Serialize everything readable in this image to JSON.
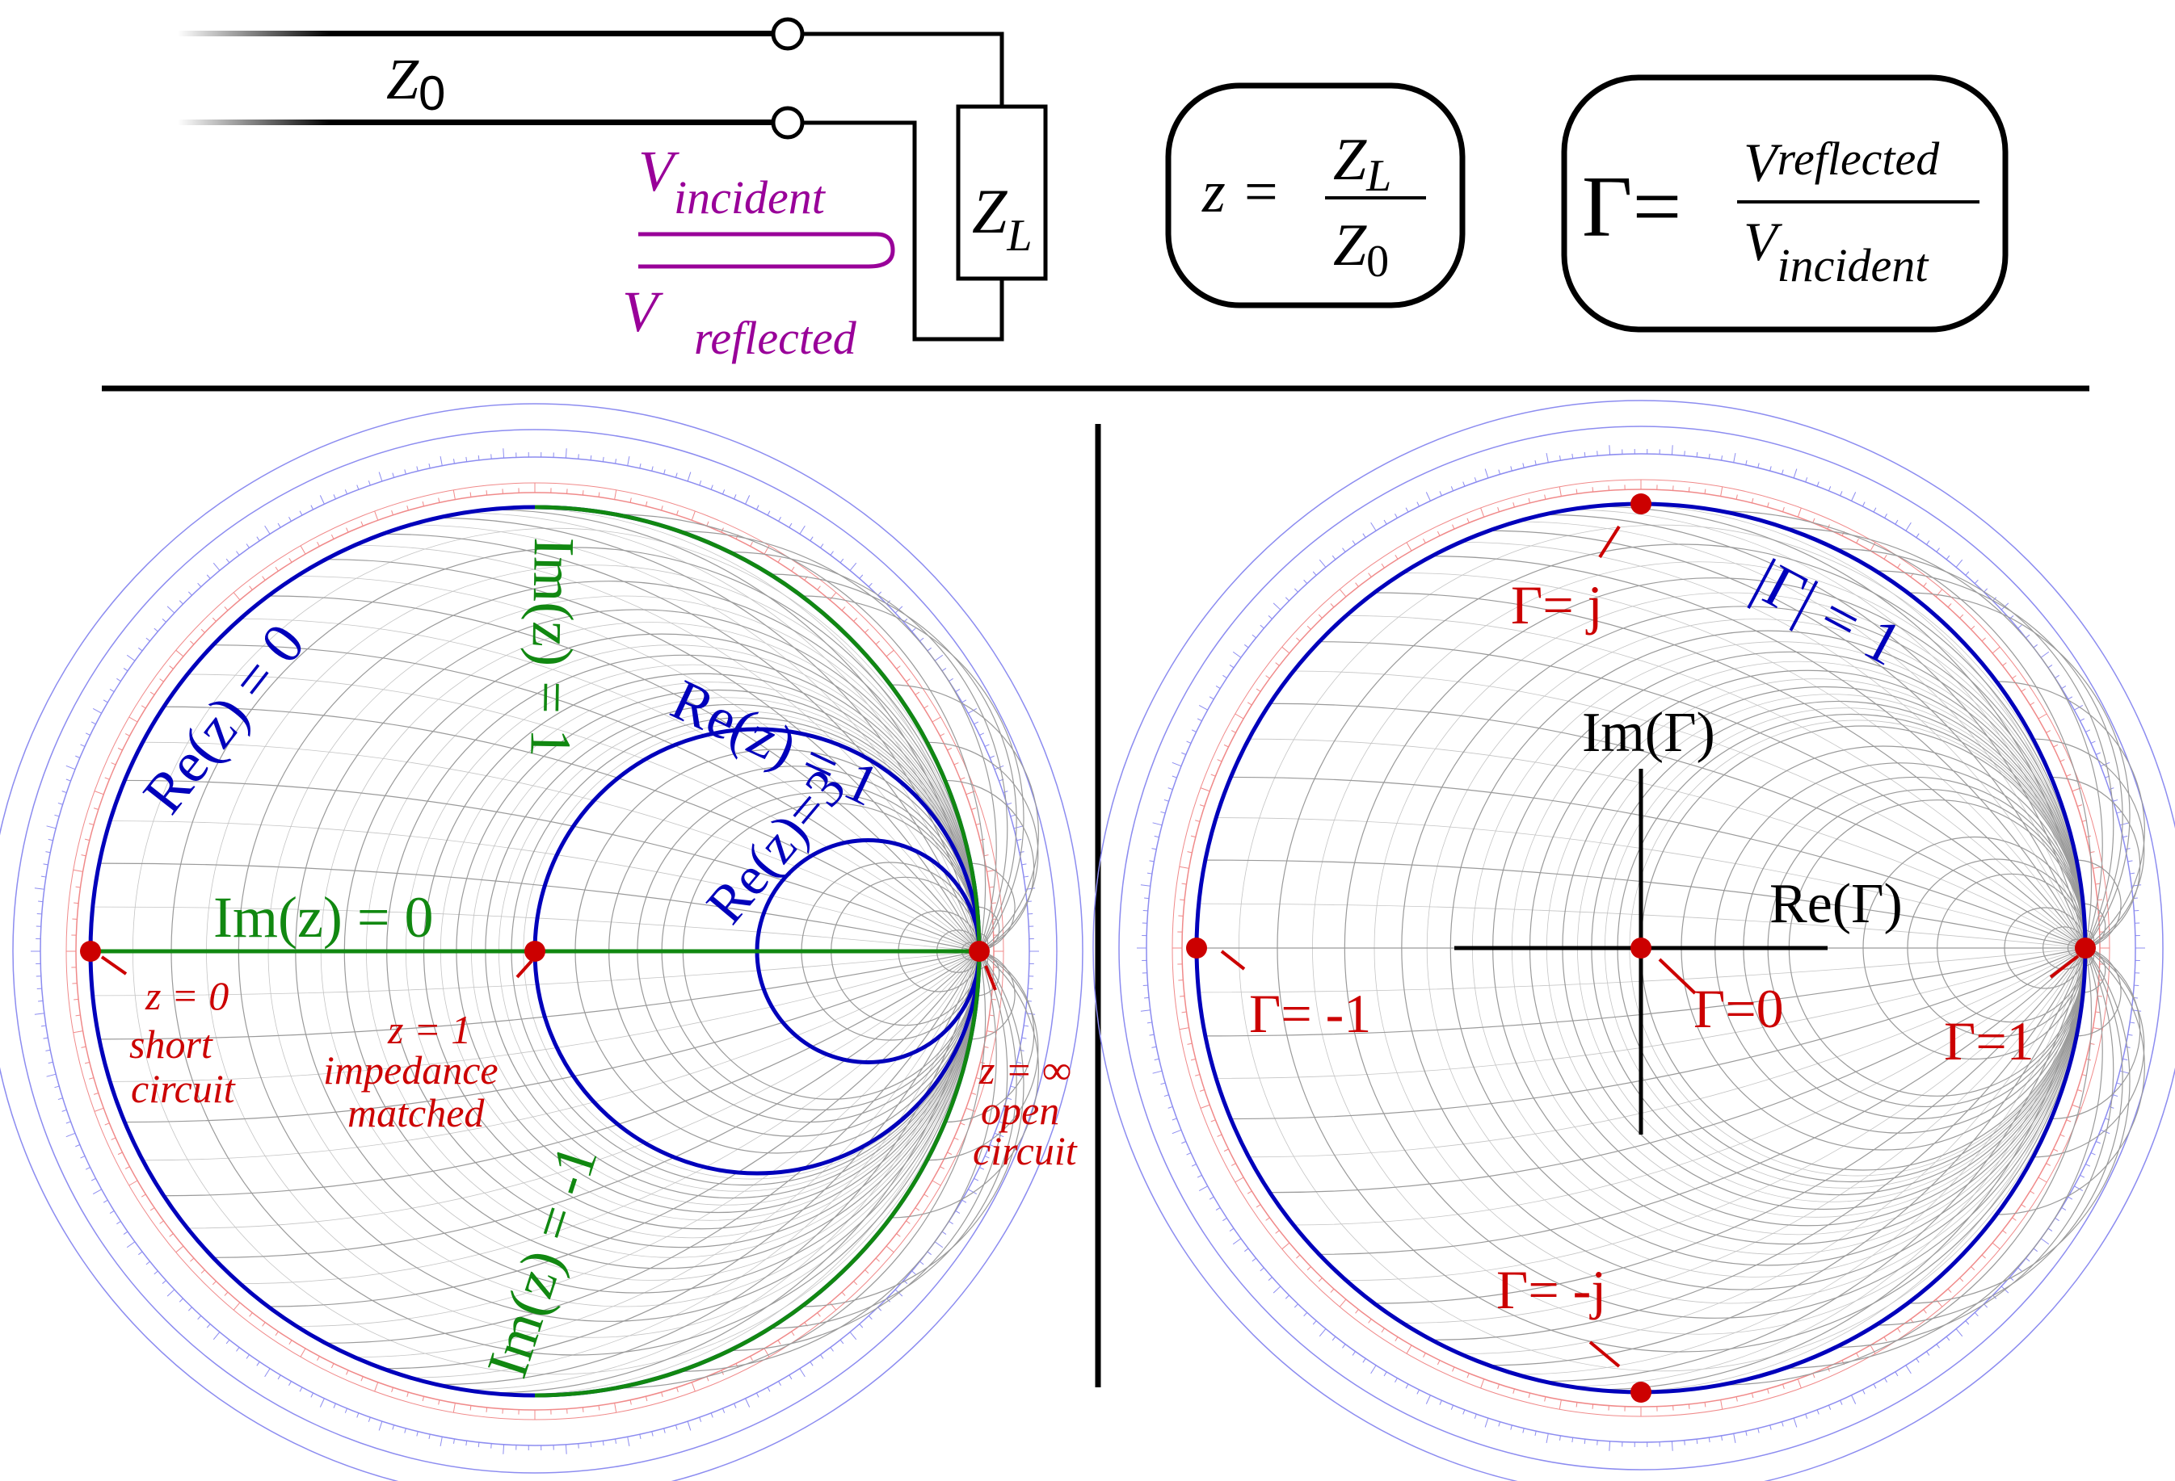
{
  "colors": {
    "blue": "#0000bb",
    "green": "#118811",
    "red": "#cc0000",
    "purple": "#990099",
    "black": "#000000",
    "scale_blue": "#8c8cf0",
    "scale_red": "#f08a8a",
    "grid": "#9a9a9a"
  },
  "circuit": {
    "z0_label": "Z",
    "z0_sub": "0",
    "zl_label": "Z",
    "zl_sub": "L",
    "v_incident": "V",
    "v_incident_sub": "incident",
    "v_reflected": "V",
    "v_reflected_sub": "reflected"
  },
  "formula_z": {
    "lhs": "z =",
    "num": "Z",
    "num_sub": "L",
    "den": "Z",
    "den_sub": "0"
  },
  "formula_gamma": {
    "lhs": "Γ=",
    "num": "V",
    "num_sub": "reflected",
    "den": "V",
    "den_sub": "incident"
  },
  "left_chart": {
    "re0_label": "Re(z) = 0",
    "re1_label": "Re(z) = 1",
    "re3_label": "Re(z)=3",
    "im0_label": "Im(z) = 0",
    "imp1_label": "Im(z) = 1",
    "imm1_label": "Im(z) = -1",
    "points": [
      {
        "line1": "z = 0",
        "line2": "short",
        "line3": "circuit"
      },
      {
        "line1": "z = 1",
        "line2": "impedance",
        "line3": "matched"
      },
      {
        "line1": "z = ∞",
        "line2": "open",
        "line3": "circuit"
      }
    ]
  },
  "right_chart": {
    "unit_circle_label": "|Γ| = 1",
    "im_axis_label": "Im(Γ)",
    "re_axis_label": "Re(Γ)",
    "points": [
      {
        "label": "Γ= j"
      },
      {
        "label": "Γ= -1"
      },
      {
        "label": "Γ=0"
      },
      {
        "label": "Γ=1"
      },
      {
        "label": "Γ= -j"
      }
    ]
  },
  "smith_grid": {
    "resistances": [
      0.1,
      0.2,
      0.3,
      0.4,
      0.5,
      0.6,
      0.7,
      0.8,
      0.9,
      1.0,
      1.2,
      1.4,
      1.6,
      1.8,
      2.0,
      3.0,
      4.0,
      5.0,
      10,
      20,
      50
    ],
    "reactances": [
      0.1,
      0.2,
      0.3,
      0.4,
      0.5,
      0.6,
      0.7,
      0.8,
      0.9,
      1.0,
      1.2,
      1.4,
      1.6,
      1.8,
      2.0,
      3.0,
      4.0,
      5.0,
      10,
      20,
      50
    ],
    "fine_resistances": [
      0.05,
      0.15,
      0.25,
      0.35,
      0.45,
      0.55,
      0.65,
      0.75,
      0.85,
      0.95
    ],
    "fine_reactances": [
      0.05,
      0.15,
      0.25,
      0.35,
      0.45,
      0.55,
      0.65,
      0.75,
      0.85,
      0.95
    ]
  }
}
